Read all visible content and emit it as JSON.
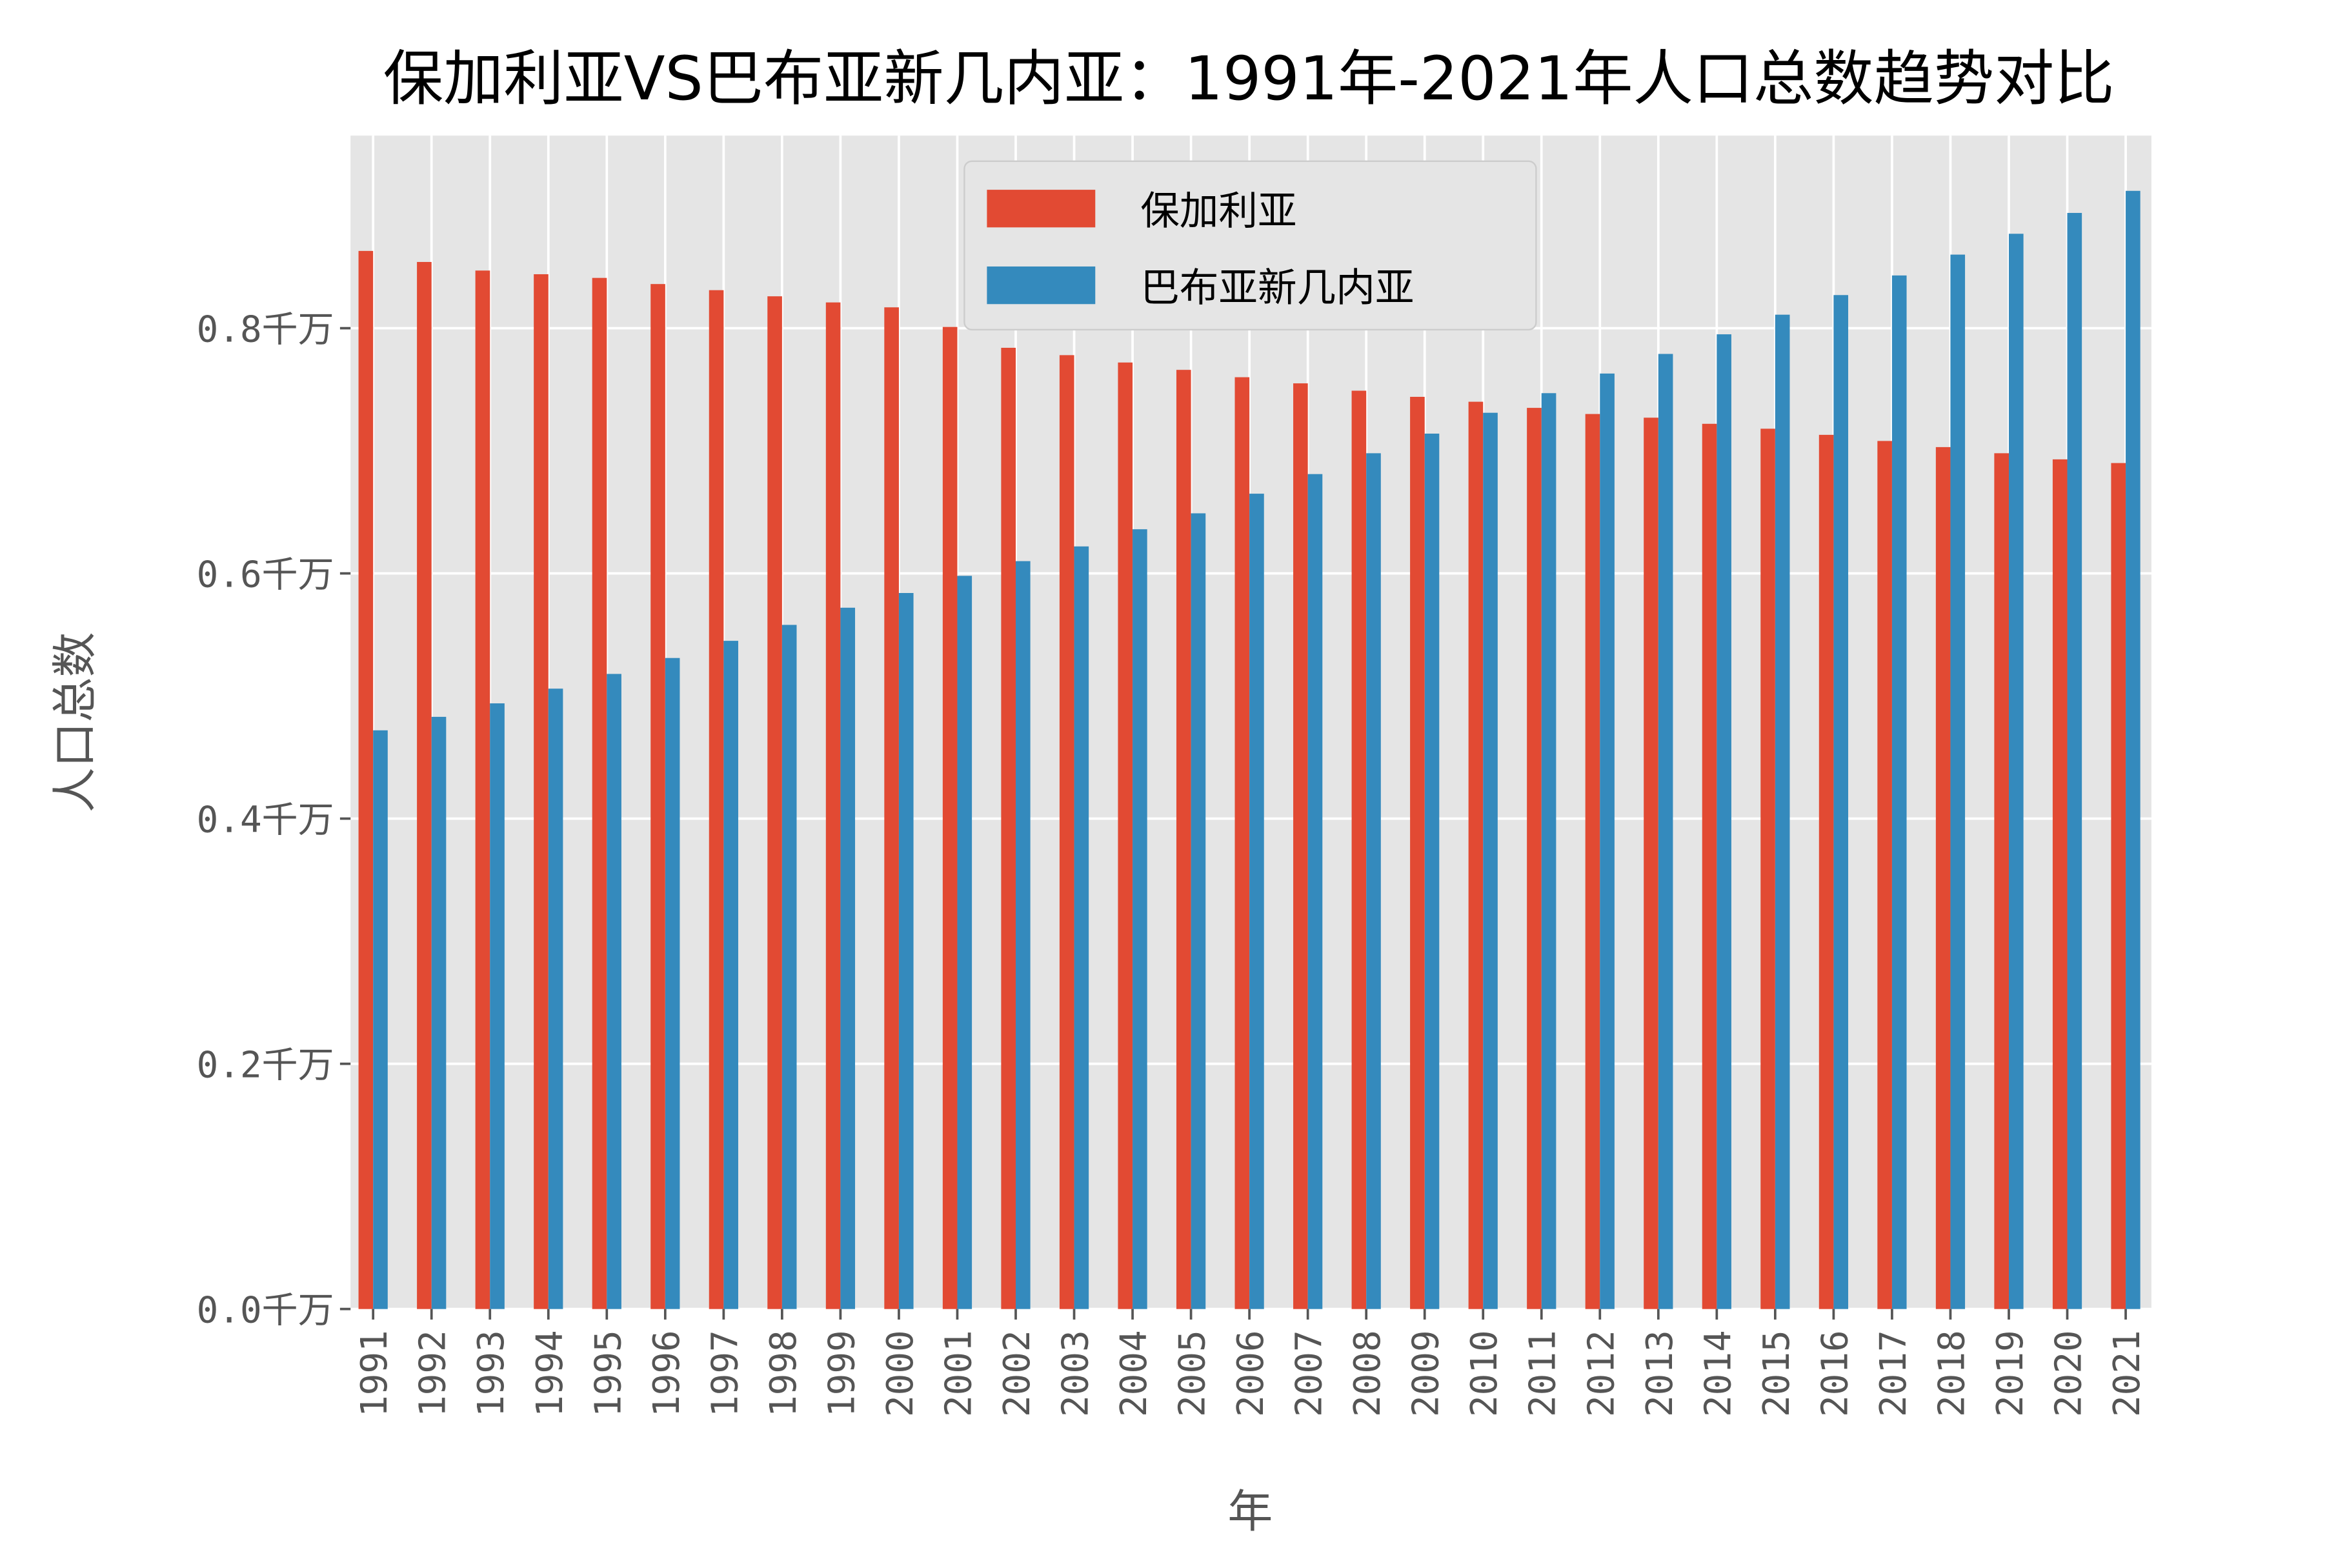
{
  "chart_data": {
    "type": "bar",
    "title": "保加利亚VS巴布亚新几内亚：1991年-2021年人口总数趋势对比",
    "xlabel": "年",
    "ylabel": "人口总数",
    "ylim": [
      0,
      0.956
    ],
    "yticks": [
      0.0,
      0.2,
      0.4,
      0.6,
      0.8
    ],
    "ytick_labels": [
      "0.0千万",
      "0.2千万",
      "0.4千万",
      "0.6千万",
      "0.8千万"
    ],
    "grid": true,
    "legend_position": "top-center",
    "categories": [
      "1991",
      "1992",
      "1993",
      "1994",
      "1995",
      "1996",
      "1997",
      "1998",
      "1999",
      "2000",
      "2001",
      "2002",
      "2003",
      "2004",
      "2005",
      "2006",
      "2007",
      "2008",
      "2009",
      "2010",
      "2011",
      "2012",
      "2013",
      "2014",
      "2015",
      "2016",
      "2017",
      "2018",
      "2019",
      "2020",
      "2021"
    ],
    "series": [
      {
        "name": "保加利亚",
        "color": "#e24a33",
        "values": [
          0.863,
          0.854,
          0.847,
          0.844,
          0.841,
          0.836,
          0.831,
          0.826,
          0.821,
          0.817,
          0.801,
          0.784,
          0.778,
          0.772,
          0.766,
          0.76,
          0.755,
          0.749,
          0.744,
          0.74,
          0.735,
          0.73,
          0.727,
          0.722,
          0.718,
          0.713,
          0.708,
          0.703,
          0.698,
          0.693,
          0.69
        ]
      },
      {
        "name": "巴布亚新几内亚",
        "color": "#348abd",
        "values": [
          0.472,
          0.483,
          0.494,
          0.506,
          0.518,
          0.531,
          0.545,
          0.558,
          0.572,
          0.584,
          0.598,
          0.61,
          0.622,
          0.636,
          0.649,
          0.665,
          0.681,
          0.698,
          0.714,
          0.731,
          0.747,
          0.763,
          0.779,
          0.795,
          0.811,
          0.827,
          0.843,
          0.86,
          0.877,
          0.894,
          0.912
        ]
      }
    ]
  }
}
